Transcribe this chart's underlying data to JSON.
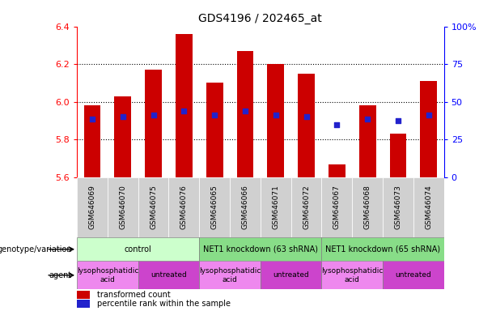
{
  "title": "GDS4196 / 202465_at",
  "samples": [
    "GSM646069",
    "GSM646070",
    "GSM646075",
    "GSM646076",
    "GSM646065",
    "GSM646066",
    "GSM646071",
    "GSM646072",
    "GSM646067",
    "GSM646068",
    "GSM646073",
    "GSM646074"
  ],
  "bar_values": [
    5.98,
    6.03,
    6.17,
    6.36,
    6.1,
    6.27,
    6.2,
    6.15,
    5.67,
    5.98,
    5.83,
    6.11
  ],
  "blue_dot_values": [
    5.91,
    5.92,
    5.93,
    5.95,
    5.93,
    5.95,
    5.93,
    5.92,
    5.88,
    5.91,
    5.9,
    5.93
  ],
  "ylim": [
    5.6,
    6.4
  ],
  "yticks_left": [
    5.6,
    5.8,
    6.0,
    6.2,
    6.4
  ],
  "yticks_right": [
    0,
    25,
    50,
    75,
    100
  ],
  "bar_color": "#cc0000",
  "dot_color": "#2222cc",
  "bar_bottom": 5.6,
  "genotype_groups": [
    {
      "label": "control",
      "start": 0,
      "end": 4,
      "color": "#ccffcc"
    },
    {
      "label": "NET1 knockdown (63 shRNA)",
      "start": 4,
      "end": 8,
      "color": "#88dd88"
    },
    {
      "label": "NET1 knockdown (65 shRNA)",
      "start": 8,
      "end": 12,
      "color": "#88dd88"
    }
  ],
  "agent_groups": [
    {
      "label": "lysophosphatidic\nacid",
      "start": 0,
      "end": 2,
      "color": "#ee88ee"
    },
    {
      "label": "untreated",
      "start": 2,
      "end": 4,
      "color": "#cc44cc"
    },
    {
      "label": "lysophosphatidic\nacid",
      "start": 4,
      "end": 6,
      "color": "#ee88ee"
    },
    {
      "label": "untreated",
      "start": 6,
      "end": 8,
      "color": "#cc44cc"
    },
    {
      "label": "lysophosphatidic\nacid",
      "start": 8,
      "end": 10,
      "color": "#ee88ee"
    },
    {
      "label": "untreated",
      "start": 10,
      "end": 12,
      "color": "#cc44cc"
    }
  ],
  "legend_red": "transformed count",
  "legend_blue": "percentile rank within the sample",
  "genotype_label": "genotype/variation",
  "agent_label": "agent",
  "xtick_bg": "#d0d0d0",
  "spine_color_left": "#cc0000",
  "spine_color_right": "#2222cc"
}
